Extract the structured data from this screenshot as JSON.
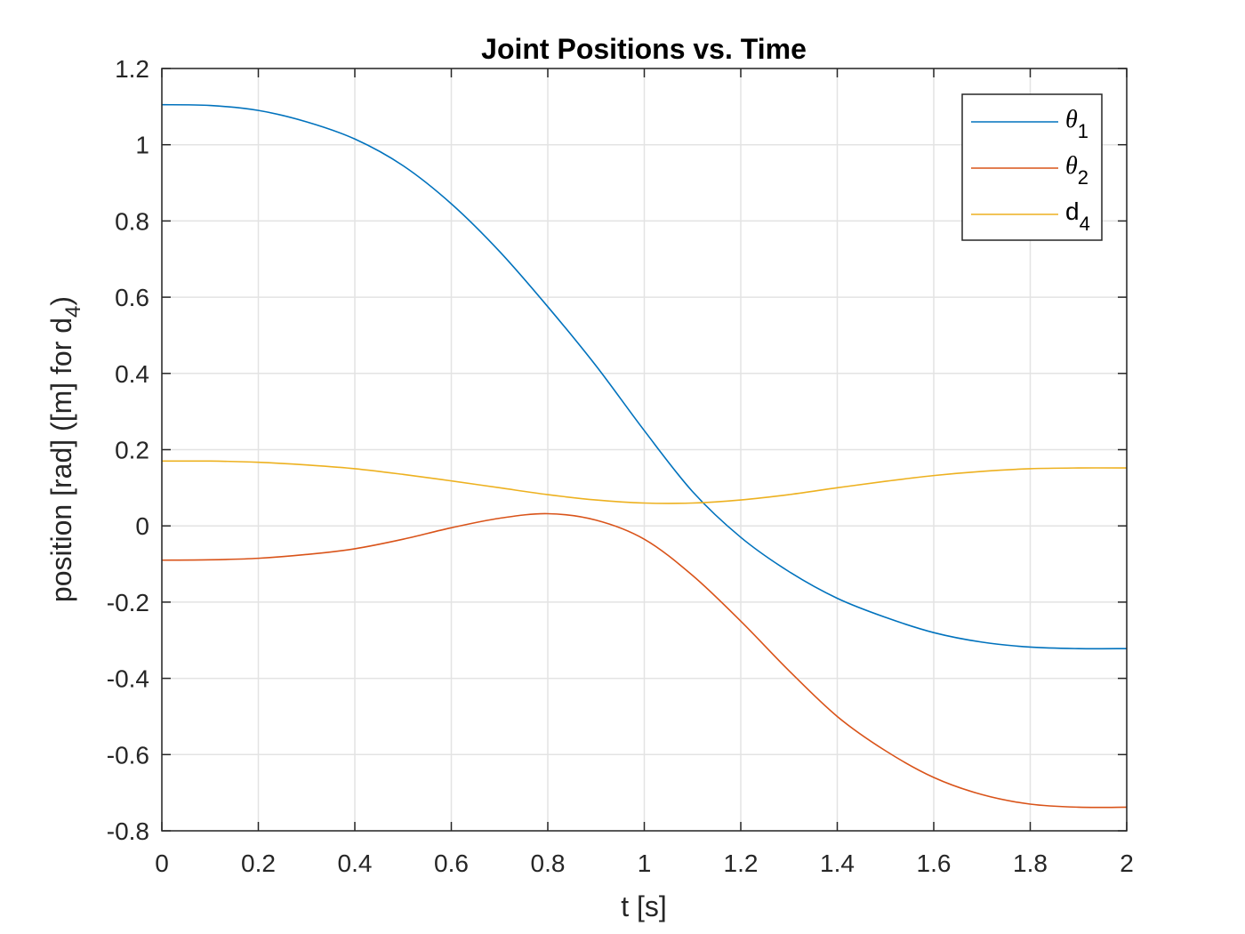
{
  "chart_data": {
    "type": "line",
    "title": "Joint Positions vs. Time",
    "xlabel": "t [s]",
    "ylabel": {
      "main": "position [rad] ([m] for d",
      "sub": "4",
      "close": ")"
    },
    "xlim": [
      0,
      2
    ],
    "ylim": [
      -0.8,
      1.2
    ],
    "xticks": [
      0,
      0.2,
      0.4,
      0.6,
      0.8,
      1,
      1.2,
      1.4,
      1.6,
      1.8,
      2
    ],
    "xtick_labels": [
      "0",
      "0.2",
      "0.4",
      "0.6",
      "0.8",
      "1",
      "1.2",
      "1.4",
      "1.6",
      "1.8",
      "2"
    ],
    "yticks": [
      -0.8,
      -0.6,
      -0.4,
      -0.2,
      0,
      0.2,
      0.4,
      0.6,
      0.8,
      1,
      1.2
    ],
    "ytick_labels": [
      "-0.8",
      "-0.6",
      "-0.4",
      "-0.2",
      "0",
      "0.2",
      "0.4",
      "0.6",
      "0.8",
      "1",
      "1.2"
    ],
    "grid": true,
    "legend_position": "top-right",
    "x": [
      0,
      0.1,
      0.2,
      0.3,
      0.4,
      0.5,
      0.6,
      0.7,
      0.8,
      0.9,
      1.0,
      1.1,
      1.2,
      1.3,
      1.4,
      1.5,
      1.6,
      1.7,
      1.8,
      1.9,
      2.0
    ],
    "series": [
      {
        "name": "θ",
        "name_sub": "1",
        "color": "#0072BD",
        "values": [
          1.105,
          1.103,
          1.09,
          1.06,
          1.015,
          0.945,
          0.845,
          0.72,
          0.575,
          0.42,
          0.25,
          0.09,
          -0.03,
          -0.12,
          -0.19,
          -0.24,
          -0.28,
          -0.305,
          -0.318,
          -0.322,
          -0.322
        ]
      },
      {
        "name": "θ",
        "name_sub": "2",
        "color": "#D95319",
        "values": [
          -0.09,
          -0.089,
          -0.085,
          -0.075,
          -0.06,
          -0.035,
          -0.005,
          0.02,
          0.032,
          0.015,
          -0.035,
          -0.13,
          -0.25,
          -0.38,
          -0.5,
          -0.59,
          -0.66,
          -0.705,
          -0.73,
          -0.738,
          -0.738
        ]
      },
      {
        "name": "d",
        "name_sub": "4",
        "color": "#EDB120",
        "values": [
          0.17,
          0.17,
          0.167,
          0.16,
          0.15,
          0.135,
          0.118,
          0.1,
          0.082,
          0.068,
          0.06,
          0.06,
          0.068,
          0.082,
          0.1,
          0.117,
          0.132,
          0.143,
          0.15,
          0.152,
          0.152
        ]
      }
    ]
  }
}
